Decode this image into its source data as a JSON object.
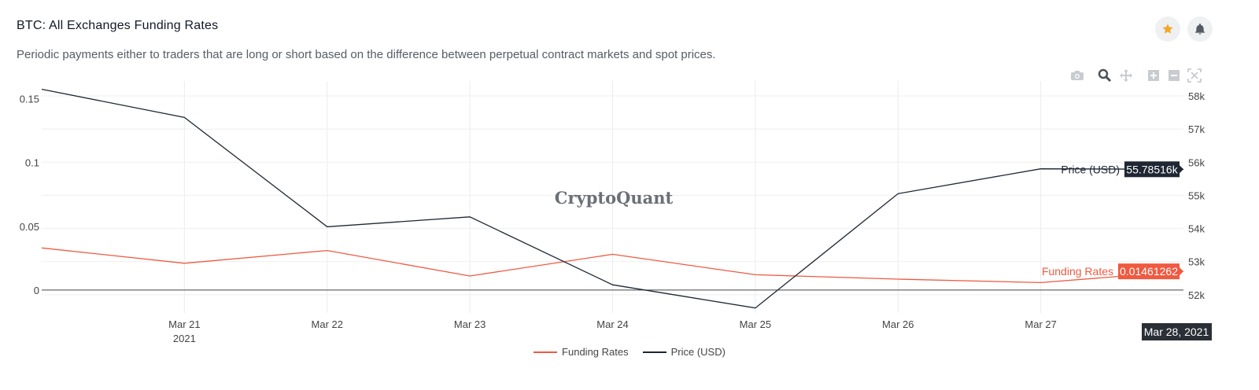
{
  "header": {
    "title": "BTC: All Exchanges Funding Rates",
    "subtitle": "Periodic payments either to traders that are long or short based on the difference between perpetual contract markets and spot prices."
  },
  "actions": {
    "star_icon": "star-icon",
    "bell_icon": "bell-icon",
    "star_color": "#f5a623"
  },
  "modebar": [
    "camera-icon",
    "zoom-icon",
    "pan-icon",
    "zoom-in-icon",
    "zoom-out-icon",
    "autoscale-icon"
  ],
  "watermark": "CryptoQuant",
  "chart_data": {
    "type": "line",
    "title": "BTC: All Exchanges Funding Rates",
    "x": [
      "2021-03-20",
      "2021-03-21",
      "2021-03-22",
      "2021-03-23",
      "2021-03-24",
      "2021-03-25",
      "2021-03-26",
      "2021-03-27",
      "2021-03-28"
    ],
    "x_ticks": [
      {
        "date": "2021-03-21",
        "label": "Mar 21",
        "sub": "2021"
      },
      {
        "date": "2021-03-22",
        "label": "Mar 22"
      },
      {
        "date": "2021-03-23",
        "label": "Mar 23"
      },
      {
        "date": "2021-03-24",
        "label": "Mar 24"
      },
      {
        "date": "2021-03-25",
        "label": "Mar 25"
      },
      {
        "date": "2021-03-26",
        "label": "Mar 26"
      },
      {
        "date": "2021-03-27",
        "label": "Mar 27"
      }
    ],
    "series": [
      {
        "name": "Funding Rates",
        "axis": "left",
        "color": "#ef5a41",
        "values": [
          0.033,
          0.021,
          0.031,
          0.011,
          0.028,
          0.012,
          0.0085,
          0.0058,
          0.01461262
        ]
      },
      {
        "name": "Price (USD)",
        "axis": "right",
        "color": "#1e2733",
        "values": [
          58200,
          57350,
          54050,
          54350,
          52300,
          51600,
          55050,
          55800,
          55785.16
        ]
      }
    ],
    "y_left": {
      "ticks": [
        0,
        0.05,
        0.1,
        0.15
      ],
      "tick_labels": [
        "0",
        "0.05",
        "0.1",
        "0.15"
      ],
      "range": [
        -0.018,
        0.164
      ]
    },
    "y_right": {
      "ticks": [
        52000,
        53000,
        54000,
        55000,
        56000,
        57000,
        58000
      ],
      "tick_labels": [
        "52k",
        "53k",
        "54k",
        "55k",
        "56k",
        "57k",
        "58k"
      ],
      "range": [
        51450,
        58450
      ]
    },
    "hover": {
      "date": "Mar 28, 2021",
      "funding_label": "Funding Rates",
      "funding_value": "0.01461262",
      "price_label": "Price (USD)",
      "price_value": "55.78516k"
    },
    "legend": [
      "Funding Rates",
      "Price (USD)"
    ]
  }
}
